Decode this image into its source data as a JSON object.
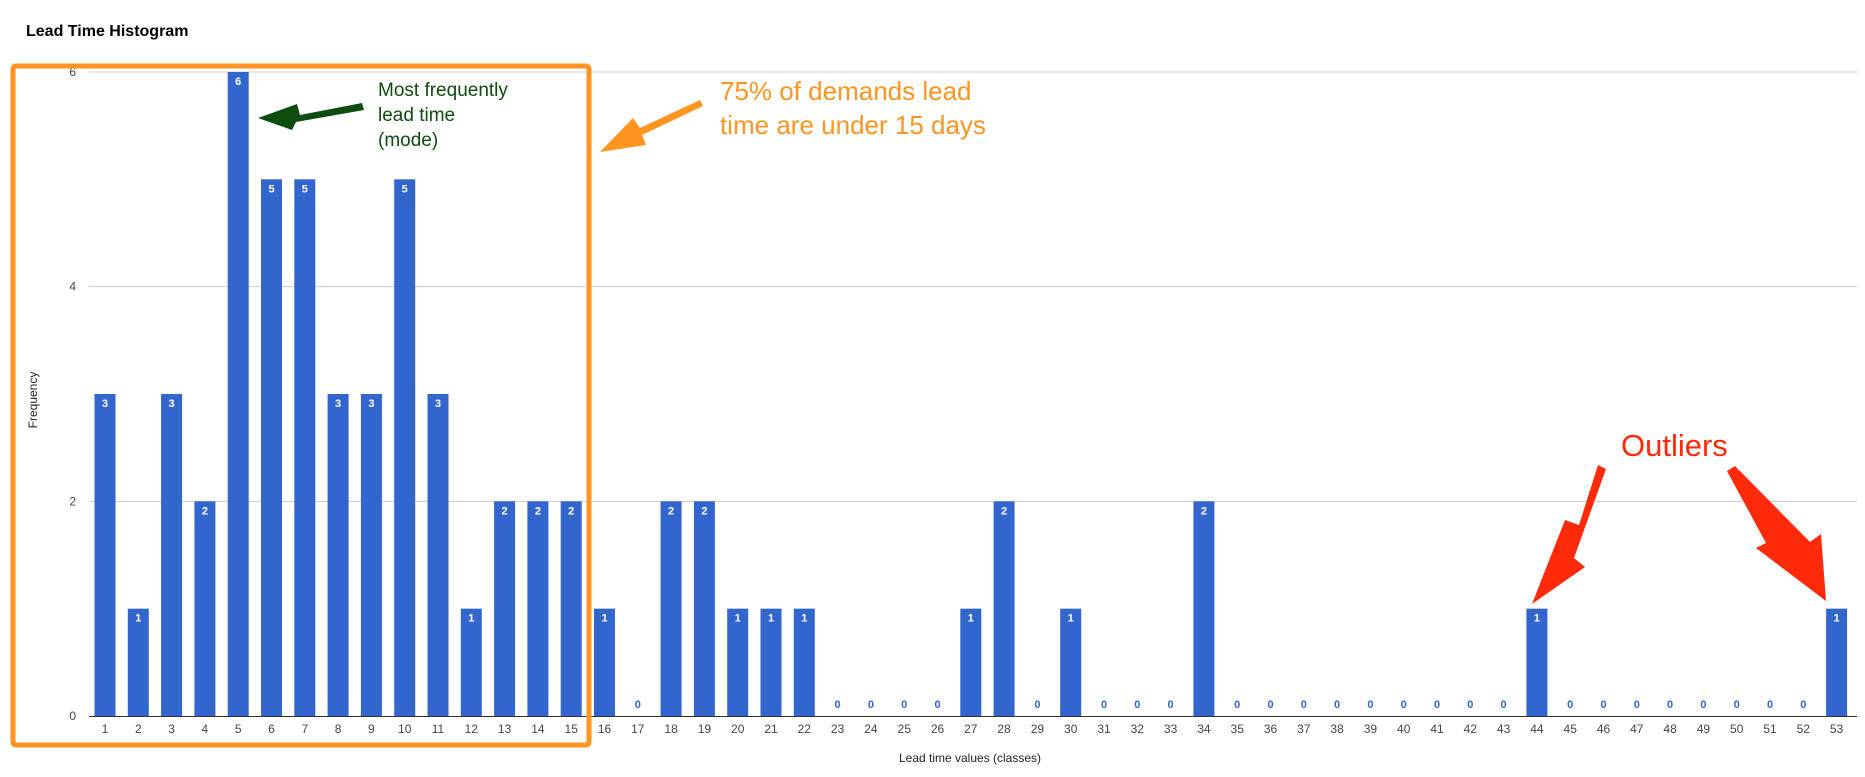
{
  "chart_data": {
    "type": "bar",
    "title": "Lead Time Histogram",
    "xlabel": "Lead time values (classes)",
    "ylabel": "Frequency",
    "ylim": [
      0,
      6
    ],
    "yticks": [
      0,
      2,
      4,
      6
    ],
    "grid": true,
    "categories": [
      "1",
      "2",
      "3",
      "4",
      "5",
      "6",
      "7",
      "8",
      "9",
      "10",
      "11",
      "12",
      "13",
      "14",
      "15",
      "16",
      "17",
      "18",
      "19",
      "20",
      "21",
      "22",
      "23",
      "24",
      "25",
      "26",
      "27",
      "28",
      "29",
      "30",
      "31",
      "32",
      "33",
      "34",
      "35",
      "36",
      "37",
      "38",
      "39",
      "40",
      "41",
      "42",
      "43",
      "44",
      "45",
      "46",
      "47",
      "48",
      "49",
      "50",
      "51",
      "52",
      "53"
    ],
    "values": [
      3,
      1,
      3,
      2,
      6,
      5,
      5,
      3,
      3,
      5,
      3,
      1,
      2,
      2,
      2,
      1,
      0,
      2,
      2,
      1,
      1,
      1,
      0,
      0,
      0,
      0,
      1,
      2,
      0,
      1,
      0,
      0,
      0,
      2,
      0,
      0,
      0,
      0,
      0,
      0,
      0,
      0,
      0,
      1,
      0,
      0,
      0,
      0,
      0,
      0,
      0,
      0,
      1
    ],
    "bar_color": "#3366cc",
    "annotations": {
      "mode": [
        "Most frequently",
        "lead time",
        "(mode)"
      ],
      "percentile": [
        "75% of demands lead",
        "time are under 15 days"
      ],
      "outliers": "Outliers"
    },
    "annotation_colors": {
      "mode": "#0e4b0e",
      "percentile": "#ff9421",
      "outliers": "#ff2a0a"
    }
  }
}
